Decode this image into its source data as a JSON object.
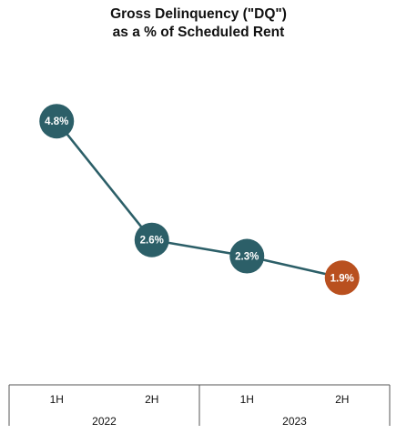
{
  "chart_data": {
    "type": "line",
    "title": "Gross Delinquency (\"DQ\")",
    "subtitle": "as a % of Scheduled Rent",
    "categories": [
      "1H",
      "2H",
      "1H",
      "2H"
    ],
    "groups": [
      {
        "label": "2022",
        "span": 2
      },
      {
        "label": "2023",
        "span": 2
      }
    ],
    "series": [
      {
        "values": [
          4.8,
          2.6,
          2.3,
          1.9
        ],
        "labels": [
          "4.8%",
          "2.6%",
          "2.3%",
          "1.9%"
        ],
        "colors": [
          "#2c5f68",
          "#2c5f68",
          "#2c5f68",
          "#b9501f"
        ]
      }
    ],
    "line_color": "#2c5f68",
    "ylim": [
      0,
      6
    ],
    "grid": false,
    "xlabel": "",
    "ylabel": ""
  }
}
